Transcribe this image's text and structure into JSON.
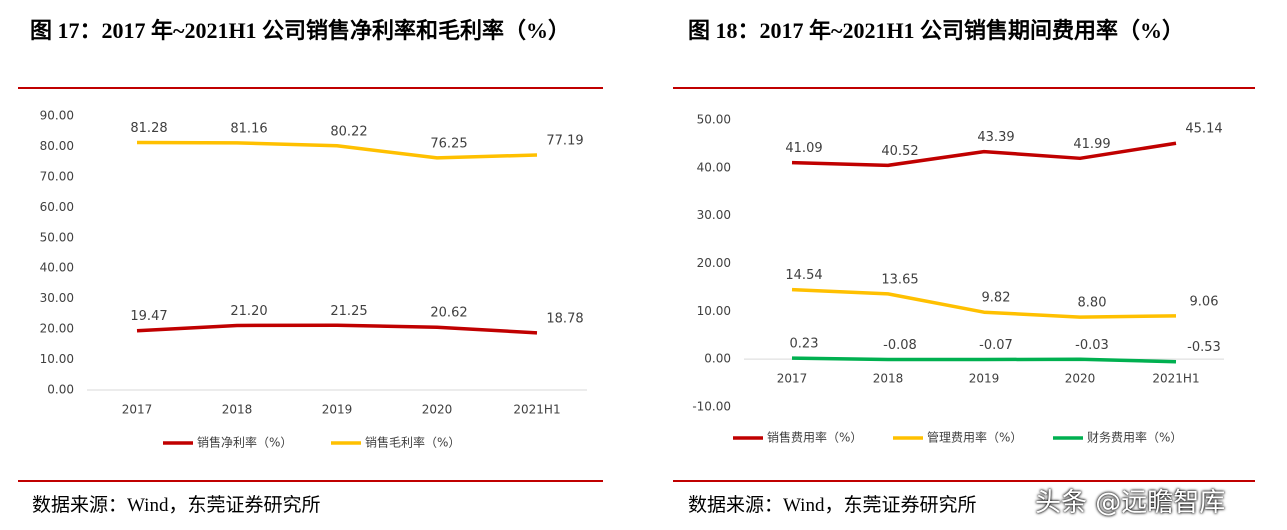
{
  "chart_data": [
    {
      "type": "line",
      "title": "图 17：2017 年~2021H1 公司销售净利率和毛利率（%）",
      "categories": [
        "2017",
        "2018",
        "2019",
        "2020",
        "2021H1"
      ],
      "series": [
        {
          "name": "销售净利率（%）",
          "color": "#c00000",
          "values": [
            19.47,
            21.2,
            21.25,
            20.62,
            18.78
          ],
          "value_labels": [
            "19.47",
            "21.20",
            "21.25",
            "20.62",
            "18.78"
          ]
        },
        {
          "name": "销售毛利率（%）",
          "color": "#ffc000",
          "values": [
            81.28,
            81.16,
            80.22,
            76.25,
            77.19
          ],
          "value_labels": [
            "81.28",
            "81.16",
            "80.22",
            "76.25",
            "77.19"
          ]
        }
      ],
      "ylim": [
        0,
        90
      ],
      "yticks": [
        {
          "value": 0,
          "label": "0.00"
        },
        {
          "value": 10,
          "label": "10.00"
        },
        {
          "value": 20,
          "label": "20.00"
        },
        {
          "value": 30,
          "label": "30.00"
        },
        {
          "value": 40,
          "label": "40.00"
        },
        {
          "value": 50,
          "label": "50.00"
        },
        {
          "value": 60,
          "label": "60.00"
        },
        {
          "value": 70,
          "label": "70.00"
        },
        {
          "value": 80,
          "label": "80.00"
        },
        {
          "value": 90,
          "label": "90.00"
        }
      ],
      "legend": "bottom",
      "grid": false,
      "source": "数据来源：Wind，东莞证券研究所"
    },
    {
      "type": "line",
      "title": "图 18：2017 年~2021H1 公司销售期间费用率（%）",
      "categories": [
        "2017",
        "2018",
        "2019",
        "2020",
        "2021H1"
      ],
      "series": [
        {
          "name": "销售费用率（%）",
          "color": "#c00000",
          "values": [
            41.09,
            40.52,
            43.39,
            41.99,
            45.14
          ],
          "value_labels": [
            "41.09",
            "40.52",
            "43.39",
            "41.99",
            "45.14"
          ]
        },
        {
          "name": "管理费用率（%）",
          "color": "#ffc000",
          "values": [
            14.54,
            13.65,
            9.82,
            8.8,
            9.06
          ],
          "value_labels": [
            "14.54",
            "13.65",
            "9.82",
            "8.80",
            "9.06"
          ]
        },
        {
          "name": "财务费用率（%）",
          "color": "#00b050",
          "values": [
            0.23,
            -0.08,
            -0.07,
            -0.03,
            -0.53
          ],
          "value_labels": [
            "0.23",
            "-0.08",
            "-0.07",
            "-0.03",
            "-0.53"
          ]
        }
      ],
      "ylim": [
        -10,
        50
      ],
      "yticks": [
        {
          "value": -10,
          "label": "-10.00"
        },
        {
          "value": 0,
          "label": "0.00"
        },
        {
          "value": 10,
          "label": "10.00"
        },
        {
          "value": 20,
          "label": "20.00"
        },
        {
          "value": 30,
          "label": "30.00"
        },
        {
          "value": 40,
          "label": "40.00"
        },
        {
          "value": 50,
          "label": "50.00"
        }
      ],
      "legend": "bottom",
      "grid": false,
      "source": "数据来源：Wind，东莞证券研究所"
    }
  ],
  "watermark": "头条 @远瞻智库"
}
